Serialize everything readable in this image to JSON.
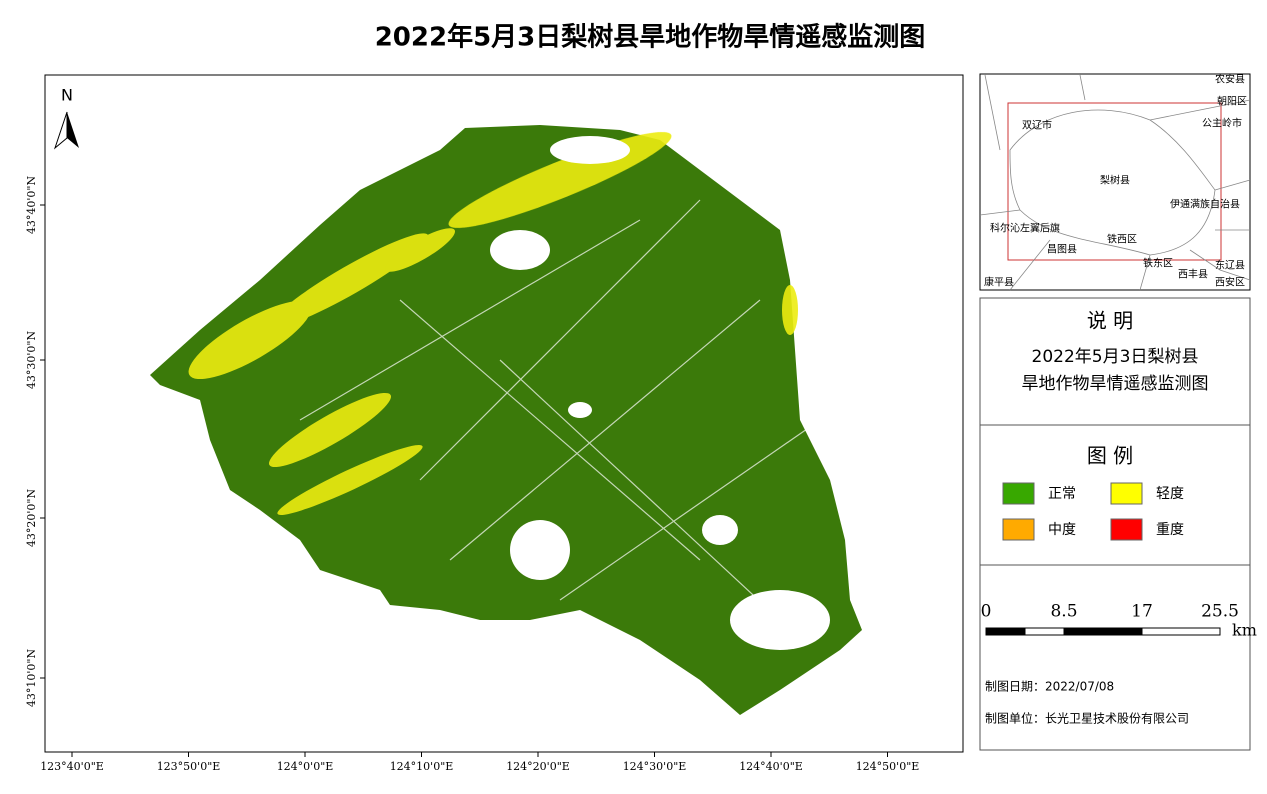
{
  "title": "2022年5月3日梨树县旱地作物旱情遥感监测图",
  "map": {
    "north": "N",
    "lat_labels": [
      "43°40'0\"N",
      "43°30'0\"N",
      "43°20'0\"N",
      "43°10'0\"N"
    ],
    "lon_labels": [
      "123°40'0\"E",
      "123°50'0\"E",
      "124°0'0\"E",
      "124°10'0\"E",
      "124°20'0\"E",
      "124°30'0\"E",
      "124°40'0\"E",
      "124°50'0\"E"
    ]
  },
  "inset": {
    "places": [
      "农安县",
      "朝阳区",
      "双辽市",
      "公主岭市",
      "梨树县",
      "伊通满族自治县",
      "科尔沁左翼后旗",
      "昌图县",
      "铁西区",
      "铁东区",
      "东辽县",
      "康平县",
      "西丰县",
      "西安区"
    ]
  },
  "description": {
    "heading": "说 明",
    "lines": [
      "2022年5月3日梨树县",
      "旱地作物旱情遥感监测图"
    ]
  },
  "legend": {
    "title": "图 例",
    "items": [
      {
        "label": "正常",
        "color": "#38a800"
      },
      {
        "label": "轻度",
        "color": "#ffff00"
      },
      {
        "label": "中度",
        "color": "#ffaa00"
      },
      {
        "label": "重度",
        "color": "#ff0000"
      }
    ]
  },
  "scale_bar": {
    "ticks": [
      0,
      8.5,
      17,
      25.5
    ],
    "unit": "km"
  },
  "footer": {
    "date": "制图日期：2022/07/08",
    "unit": "制图单位：长光卫星技术股份有限公司"
  }
}
